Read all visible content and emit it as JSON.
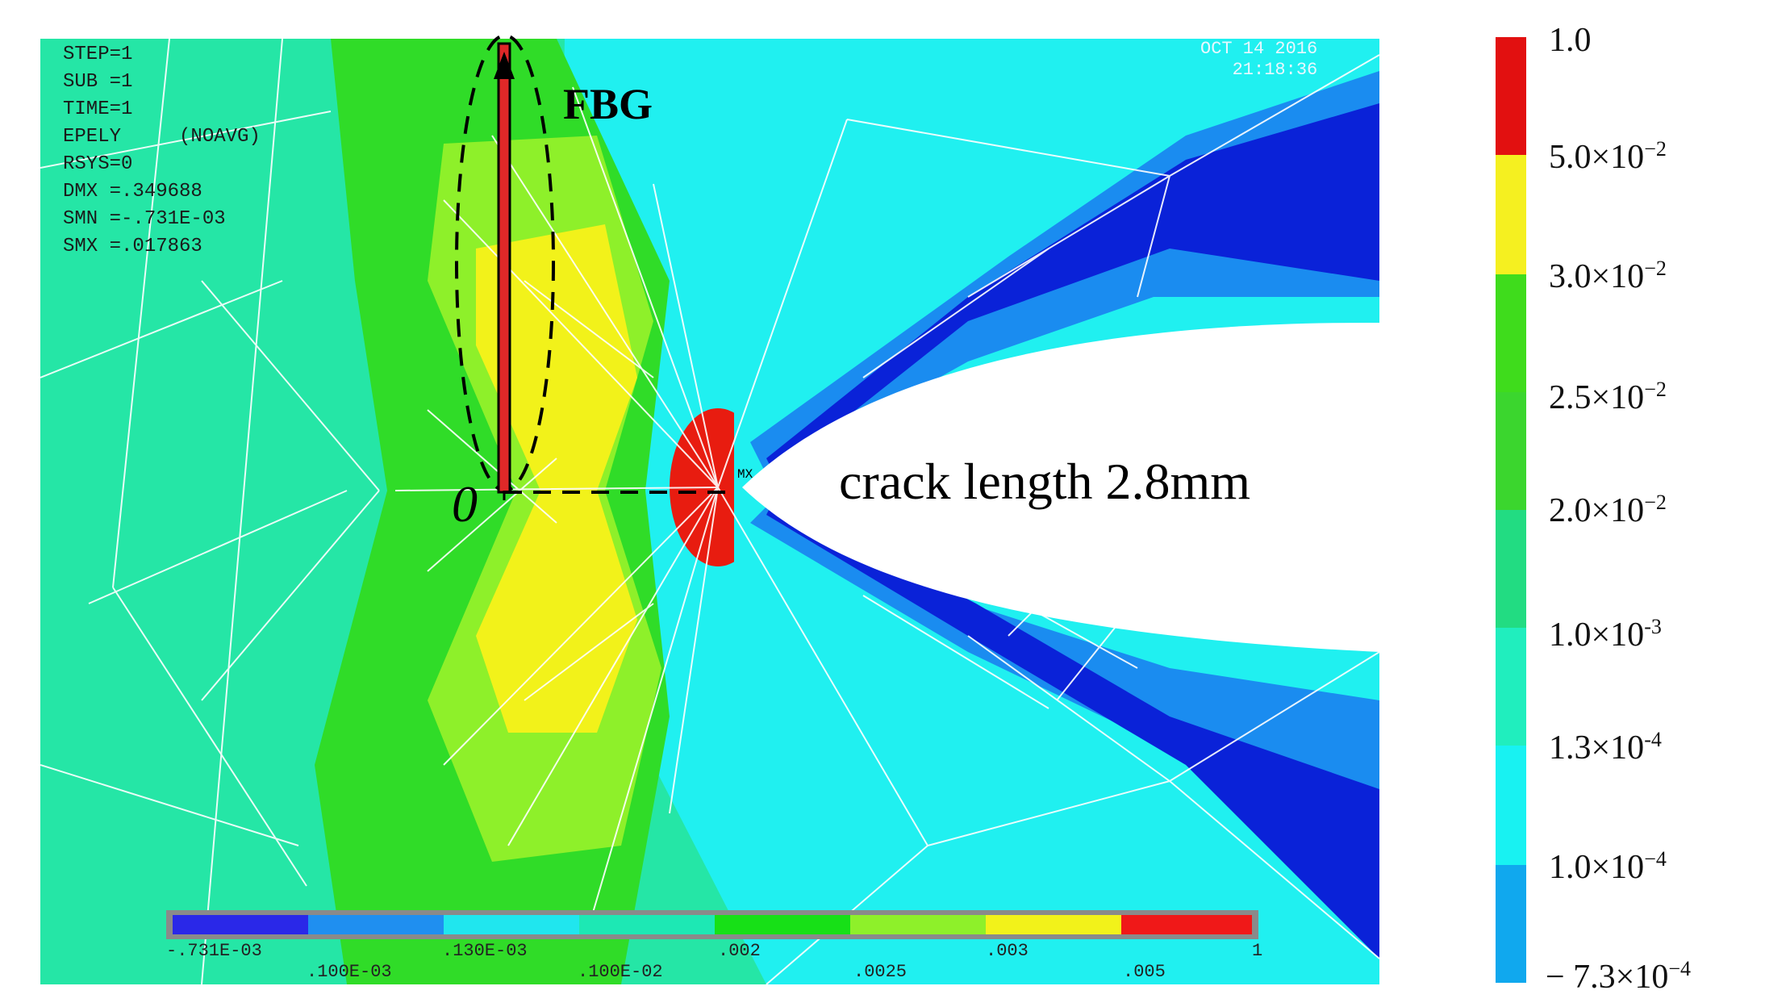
{
  "plot_info": {
    "lines": [
      "STEP=1",
      "SUB =1",
      "TIME=1",
      "EPELY     (NOAVG)",
      "RSYS=0",
      "DMX =.349688",
      "SMN =-.731E-03",
      "SMX =.017863"
    ]
  },
  "timestamp": {
    "date": "OCT 14 2016",
    "time": "21:18:36"
  },
  "annotations": {
    "fbg": "FBG",
    "origin": "0",
    "crack": "crack length 2.8mm",
    "node_label": "MX"
  },
  "bottom_colorbar": {
    "segments": [
      "#2a28e8",
      "#1f8ff0",
      "#20e6ee",
      "#1de8b4",
      "#17e017",
      "#8ef02a",
      "#f2f21a",
      "#f01818"
    ],
    "labels_top": [
      ".731E-03",
      ".130E-03",
      ".002",
      ".003",
      "1"
    ],
    "labels_top_prefix": "-",
    "labels_bottom": [
      ".100E-03",
      ".100E-02",
      ".0025",
      ".005"
    ]
  },
  "right_legend": {
    "colors": [
      "#e21010",
      "#f5f020",
      "#3fdc1c",
      "#3bd62e",
      "#22dc82",
      "#20eebe",
      "#18f2f2",
      "#10a8ee",
      "#0a2ad8"
    ],
    "labels": [
      {
        "mant": "1.0",
        "exp": ""
      },
      {
        "mant": "5.0×10",
        "exp": "−2"
      },
      {
        "mant": "3.0×10",
        "exp": "−2"
      },
      {
        "mant": "2.5×10",
        "exp": "−2"
      },
      {
        "mant": "2.0×10",
        "exp": "−2"
      },
      {
        "mant": "1.0×10",
        "exp": "-3"
      },
      {
        "mant": "1.3×10",
        "exp": "-4"
      },
      {
        "mant": "1.0×10",
        "exp": "−4"
      },
      {
        "mant": "− 7.3×10",
        "exp": "−4"
      }
    ]
  }
}
